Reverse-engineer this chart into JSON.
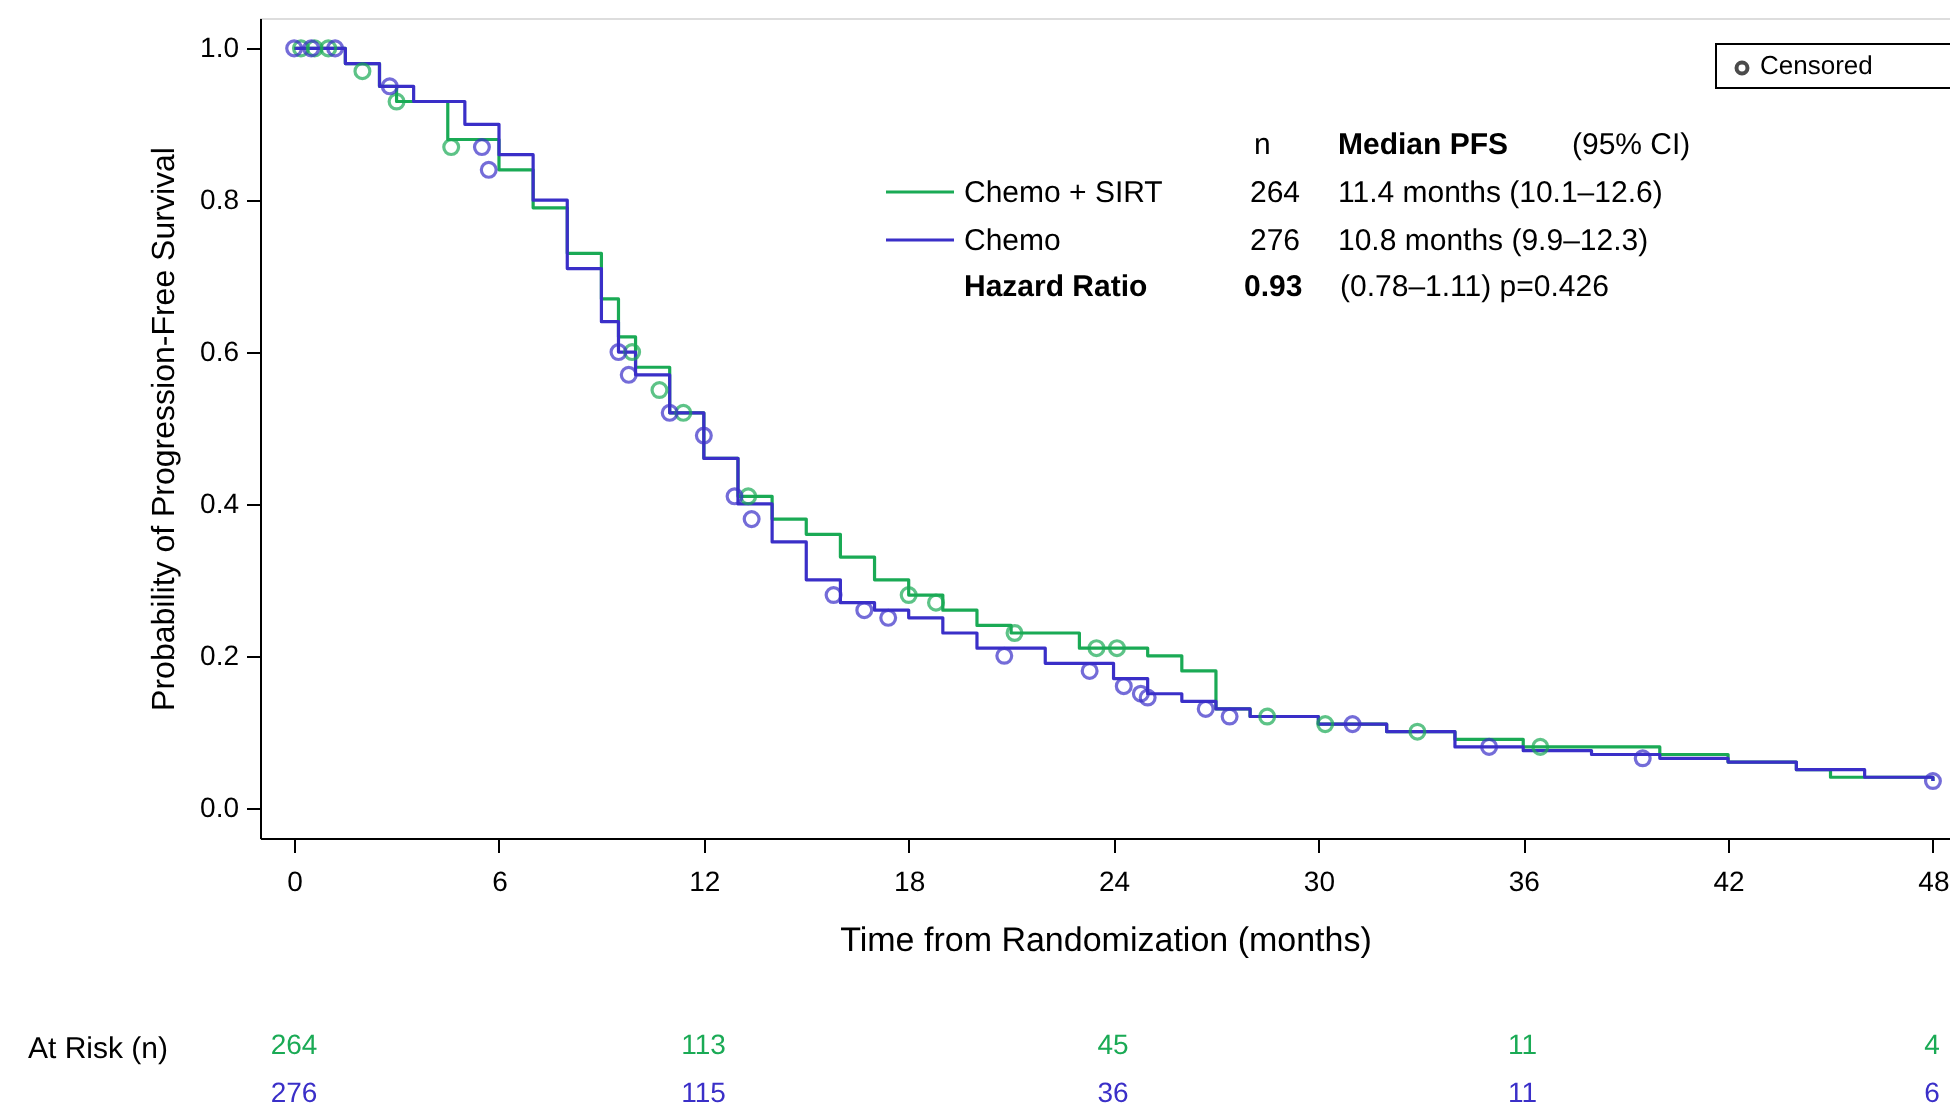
{
  "chart_data": {
    "type": "step",
    "xlabel": "Time from Randomization (months)",
    "ylabel": "Probability of Progression-Free Survival",
    "xlim": [
      -1,
      48.5
    ],
    "xticks": [
      0,
      6,
      12,
      18,
      24,
      30,
      36,
      42,
      48
    ],
    "ylim": [
      -0.04,
      1.04
    ],
    "yticks": [
      {
        "value": 0,
        "label": "0.0"
      },
      {
        "value": 0.2,
        "label": "0.2"
      },
      {
        "value": 0.4,
        "label": "0.4"
      },
      {
        "value": 0.6,
        "label": "0.6"
      },
      {
        "value": 0.8,
        "label": "0.8"
      },
      {
        "value": 1,
        "label": "1.0"
      }
    ],
    "grid": false,
    "legend": "top right",
    "line_style": "solid",
    "series": [
      {
        "name": "Chemo + SIRT",
        "color": "#1aaa55",
        "x": [
          0,
          1,
          1.5,
          2.5,
          3,
          4.5,
          6,
          7,
          8,
          9,
          9.5,
          10,
          11,
          12,
          13,
          14,
          15,
          16,
          17,
          18,
          19,
          20,
          21,
          23,
          25,
          26,
          27,
          28,
          30,
          32,
          34,
          36,
          40,
          42,
          44,
          45,
          48
        ],
        "values": [
          1.0,
          1.0,
          0.98,
          0.95,
          0.93,
          0.88,
          0.84,
          0.79,
          0.73,
          0.67,
          0.62,
          0.58,
          0.52,
          0.46,
          0.41,
          0.38,
          0.36,
          0.33,
          0.3,
          0.28,
          0.26,
          0.24,
          0.23,
          0.21,
          0.2,
          0.18,
          0.13,
          0.12,
          0.11,
          0.1,
          0.09,
          0.08,
          0.07,
          0.06,
          0.05,
          0.04,
          0.035
        ]
      },
      {
        "name": "Chemo",
        "color": "#3a2fc8",
        "x": [
          0,
          1.5,
          2.5,
          3.5,
          5,
          6,
          7,
          8,
          9,
          9.5,
          10,
          11,
          12,
          13,
          14,
          15,
          16,
          17,
          18,
          19,
          20,
          22,
          24,
          25,
          26,
          27,
          28,
          30,
          32,
          34,
          36,
          38,
          40,
          42,
          44,
          46,
          48
        ],
        "values": [
          1.0,
          0.98,
          0.95,
          0.93,
          0.9,
          0.86,
          0.8,
          0.71,
          0.64,
          0.6,
          0.57,
          0.52,
          0.46,
          0.4,
          0.35,
          0.3,
          0.27,
          0.26,
          0.25,
          0.23,
          0.21,
          0.19,
          0.17,
          0.15,
          0.14,
          0.13,
          0.12,
          0.11,
          0.1,
          0.08,
          0.075,
          0.07,
          0.065,
          0.06,
          0.05,
          0.04,
          0.035
        ]
      },
      {
        "type": "scatter",
        "marker": "circle",
        "color": "#1aaa55",
        "x": [
          0.2,
          0.6,
          1,
          2,
          3,
          4.6,
          9.9,
          10.7,
          11.4,
          13.3,
          18,
          18.8,
          21.1,
          23.5,
          24.1,
          28.5,
          30.2,
          32.9,
          36.5
        ],
        "values": [
          1.0,
          1.0,
          1.0,
          0.97,
          0.93,
          0.87,
          0.6,
          0.55,
          0.52,
          0.41,
          0.28,
          0.27,
          0.23,
          0.21,
          0.21,
          0.12,
          0.11,
          0.1,
          0.08
        ]
      },
      {
        "type": "scatter",
        "marker": "circle",
        "color": "#3a2fc8",
        "x": [
          0,
          0.5,
          1.2,
          2.8,
          5.5,
          5.7,
          9.5,
          9.8,
          11,
          12,
          12.9,
          13.4,
          15.8,
          16.7,
          17.4,
          20.8,
          23.3,
          24.3,
          24.8,
          25,
          26.7,
          27.4,
          31,
          35,
          39.5,
          48
        ],
        "values": [
          1.0,
          1.0,
          1.0,
          0.95,
          0.87,
          0.84,
          0.6,
          0.57,
          0.52,
          0.49,
          0.41,
          0.38,
          0.28,
          0.26,
          0.25,
          0.2,
          0.18,
          0.16,
          0.15,
          0.145,
          0.13,
          0.12,
          0.11,
          0.08,
          0.065,
          0.035
        ]
      }
    ],
    "annotations": [
      "n",
      "Median PFS",
      "(95% CI)",
      "264",
      "11.4 months (10.1–12.6)",
      "276",
      "10.8 months (9.9–12.3)",
      "Hazard Ratio",
      "0.93",
      "(0.78–1.11) p=0.426",
      "Censored",
      "At Risk (n)",
      "264",
      "113",
      "45",
      "11",
      "4",
      "276",
      "115",
      "36",
      "11",
      "6"
    ]
  }
}
